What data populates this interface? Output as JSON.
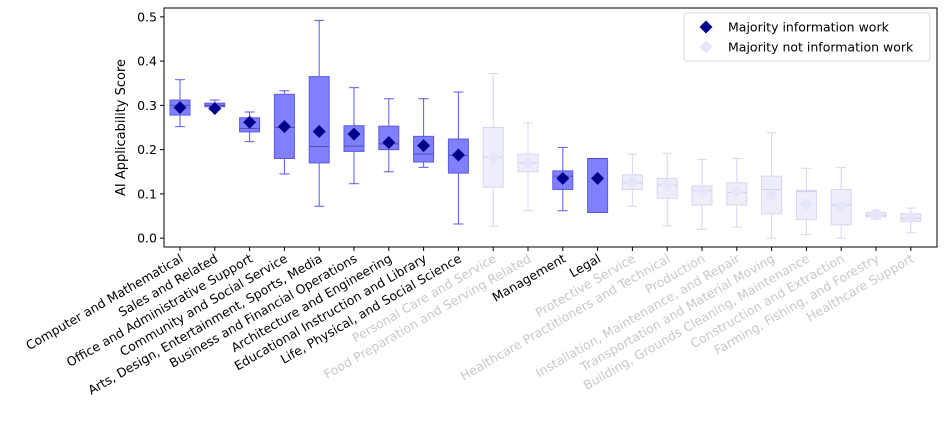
{
  "chart_data": {
    "type": "box",
    "title": "",
    "xlabel": "",
    "ylabel": "AI Applicability Score",
    "ylim": [
      -0.02,
      0.52
    ],
    "yticks": [
      "0.0",
      "0.1",
      "0.2",
      "0.3",
      "0.4",
      "0.5"
    ],
    "colors": {
      "info_marker": "#00008b",
      "info_box": "#8080ff",
      "info_edge": "#5a5ae6",
      "info_label": "#000000",
      "noninfo_marker": "#e6e6fa",
      "noninfo_box": "#eeeefb",
      "noninfo_edge": "#d6d6f2",
      "noninfo_label": "#c8c8c8"
    },
    "legend": {
      "position": "top-right",
      "entries": [
        {
          "label": "Majority information work",
          "group": "info"
        },
        {
          "label": "Majority not information work",
          "group": "noninfo"
        }
      ]
    },
    "categories": [
      {
        "label": "Computer and Mathematical",
        "group": "info",
        "mean": 0.295,
        "q1": 0.278,
        "median": 0.3,
        "q3": 0.312,
        "wlo": 0.252,
        "whi": 0.358
      },
      {
        "label": "Sales and Related",
        "group": "info",
        "mean": 0.293,
        "q1": 0.297,
        "median": 0.3,
        "q3": 0.305,
        "wlo": 0.29,
        "whi": 0.312
      },
      {
        "label": "Office and Administrative Support",
        "group": "info",
        "mean": 0.262,
        "q1": 0.24,
        "median": 0.248,
        "q3": 0.272,
        "wlo": 0.218,
        "whi": 0.285
      },
      {
        "label": "Community and Social Service",
        "group": "info",
        "mean": 0.252,
        "q1": 0.18,
        "median": 0.25,
        "q3": 0.325,
        "wlo": 0.145,
        "whi": 0.333
      },
      {
        "label": "Arts, Design, Entertainment, Sports, Media",
        "group": "info",
        "mean": 0.241,
        "q1": 0.17,
        "median": 0.207,
        "q3": 0.365,
        "wlo": 0.072,
        "whi": 0.492
      },
      {
        "label": "Business and Financial Operations",
        "group": "info",
        "mean": 0.235,
        "q1": 0.196,
        "median": 0.208,
        "q3": 0.254,
        "wlo": 0.123,
        "whi": 0.34
      },
      {
        "label": "Architecture and Engineering",
        "group": "info",
        "mean": 0.216,
        "q1": 0.2,
        "median": 0.213,
        "q3": 0.253,
        "wlo": 0.15,
        "whi": 0.315
      },
      {
        "label": "Educational Instruction and Library",
        "group": "info",
        "mean": 0.209,
        "q1": 0.172,
        "median": 0.19,
        "q3": 0.23,
        "wlo": 0.16,
        "whi": 0.315
      },
      {
        "label": "Life, Physical, and Social Science",
        "group": "info",
        "mean": 0.188,
        "q1": 0.147,
        "median": 0.187,
        "q3": 0.224,
        "wlo": 0.032,
        "whi": 0.33
      },
      {
        "label": "Personal Care and Service",
        "group": "noninfo",
        "mean": 0.182,
        "q1": 0.115,
        "median": 0.183,
        "q3": 0.25,
        "wlo": 0.027,
        "whi": 0.372
      },
      {
        "label": "Food Preparation and Serving Related",
        "group": "noninfo",
        "mean": 0.168,
        "q1": 0.15,
        "median": 0.17,
        "q3": 0.19,
        "wlo": 0.062,
        "whi": 0.26
      },
      {
        "label": "Management",
        "group": "info",
        "mean": 0.135,
        "q1": 0.11,
        "median": 0.14,
        "q3": 0.152,
        "wlo": 0.062,
        "whi": 0.205
      },
      {
        "label": "Legal",
        "group": "info",
        "mean": 0.135,
        "q1": 0.058,
        "median": 0.18,
        "q3": 0.18,
        "wlo": 0.058,
        "whi": 0.18
      },
      {
        "label": "Protective Service",
        "group": "noninfo",
        "mean": 0.126,
        "q1": 0.11,
        "median": 0.125,
        "q3": 0.143,
        "wlo": 0.072,
        "whi": 0.19
      },
      {
        "label": "Healthcare Practitioners and Technical",
        "group": "noninfo",
        "mean": 0.12,
        "q1": 0.09,
        "median": 0.12,
        "q3": 0.135,
        "wlo": 0.028,
        "whi": 0.192
      },
      {
        "label": "Production",
        "group": "noninfo",
        "mean": 0.106,
        "q1": 0.075,
        "median": 0.108,
        "q3": 0.118,
        "wlo": 0.02,
        "whi": 0.178
      },
      {
        "label": "Installation, Maintenance, and Repair",
        "group": "noninfo",
        "mean": 0.105,
        "q1": 0.075,
        "median": 0.103,
        "q3": 0.125,
        "wlo": 0.025,
        "whi": 0.18
      },
      {
        "label": "Transportation and Material Moving",
        "group": "noninfo",
        "mean": 0.098,
        "q1": 0.055,
        "median": 0.11,
        "q3": 0.14,
        "wlo": 0.0,
        "whi": 0.238
      },
      {
        "label": "Building, Grounds Cleaning, Maintenance",
        "group": "noninfo",
        "mean": 0.077,
        "q1": 0.042,
        "median": 0.105,
        "q3": 0.108,
        "wlo": 0.008,
        "whi": 0.158
      },
      {
        "label": "Construction and Extraction",
        "group": "noninfo",
        "mean": 0.071,
        "q1": 0.03,
        "median": 0.075,
        "q3": 0.11,
        "wlo": 0.0,
        "whi": 0.16
      },
      {
        "label": "Farming, Fishing, and Forestry",
        "group": "noninfo",
        "mean": 0.053,
        "q1": 0.048,
        "median": 0.052,
        "q3": 0.058,
        "wlo": 0.043,
        "whi": 0.063
      },
      {
        "label": "Healthcare Support",
        "group": "noninfo",
        "mean": 0.046,
        "q1": 0.038,
        "median": 0.045,
        "q3": 0.055,
        "wlo": 0.012,
        "whi": 0.068
      }
    ]
  }
}
